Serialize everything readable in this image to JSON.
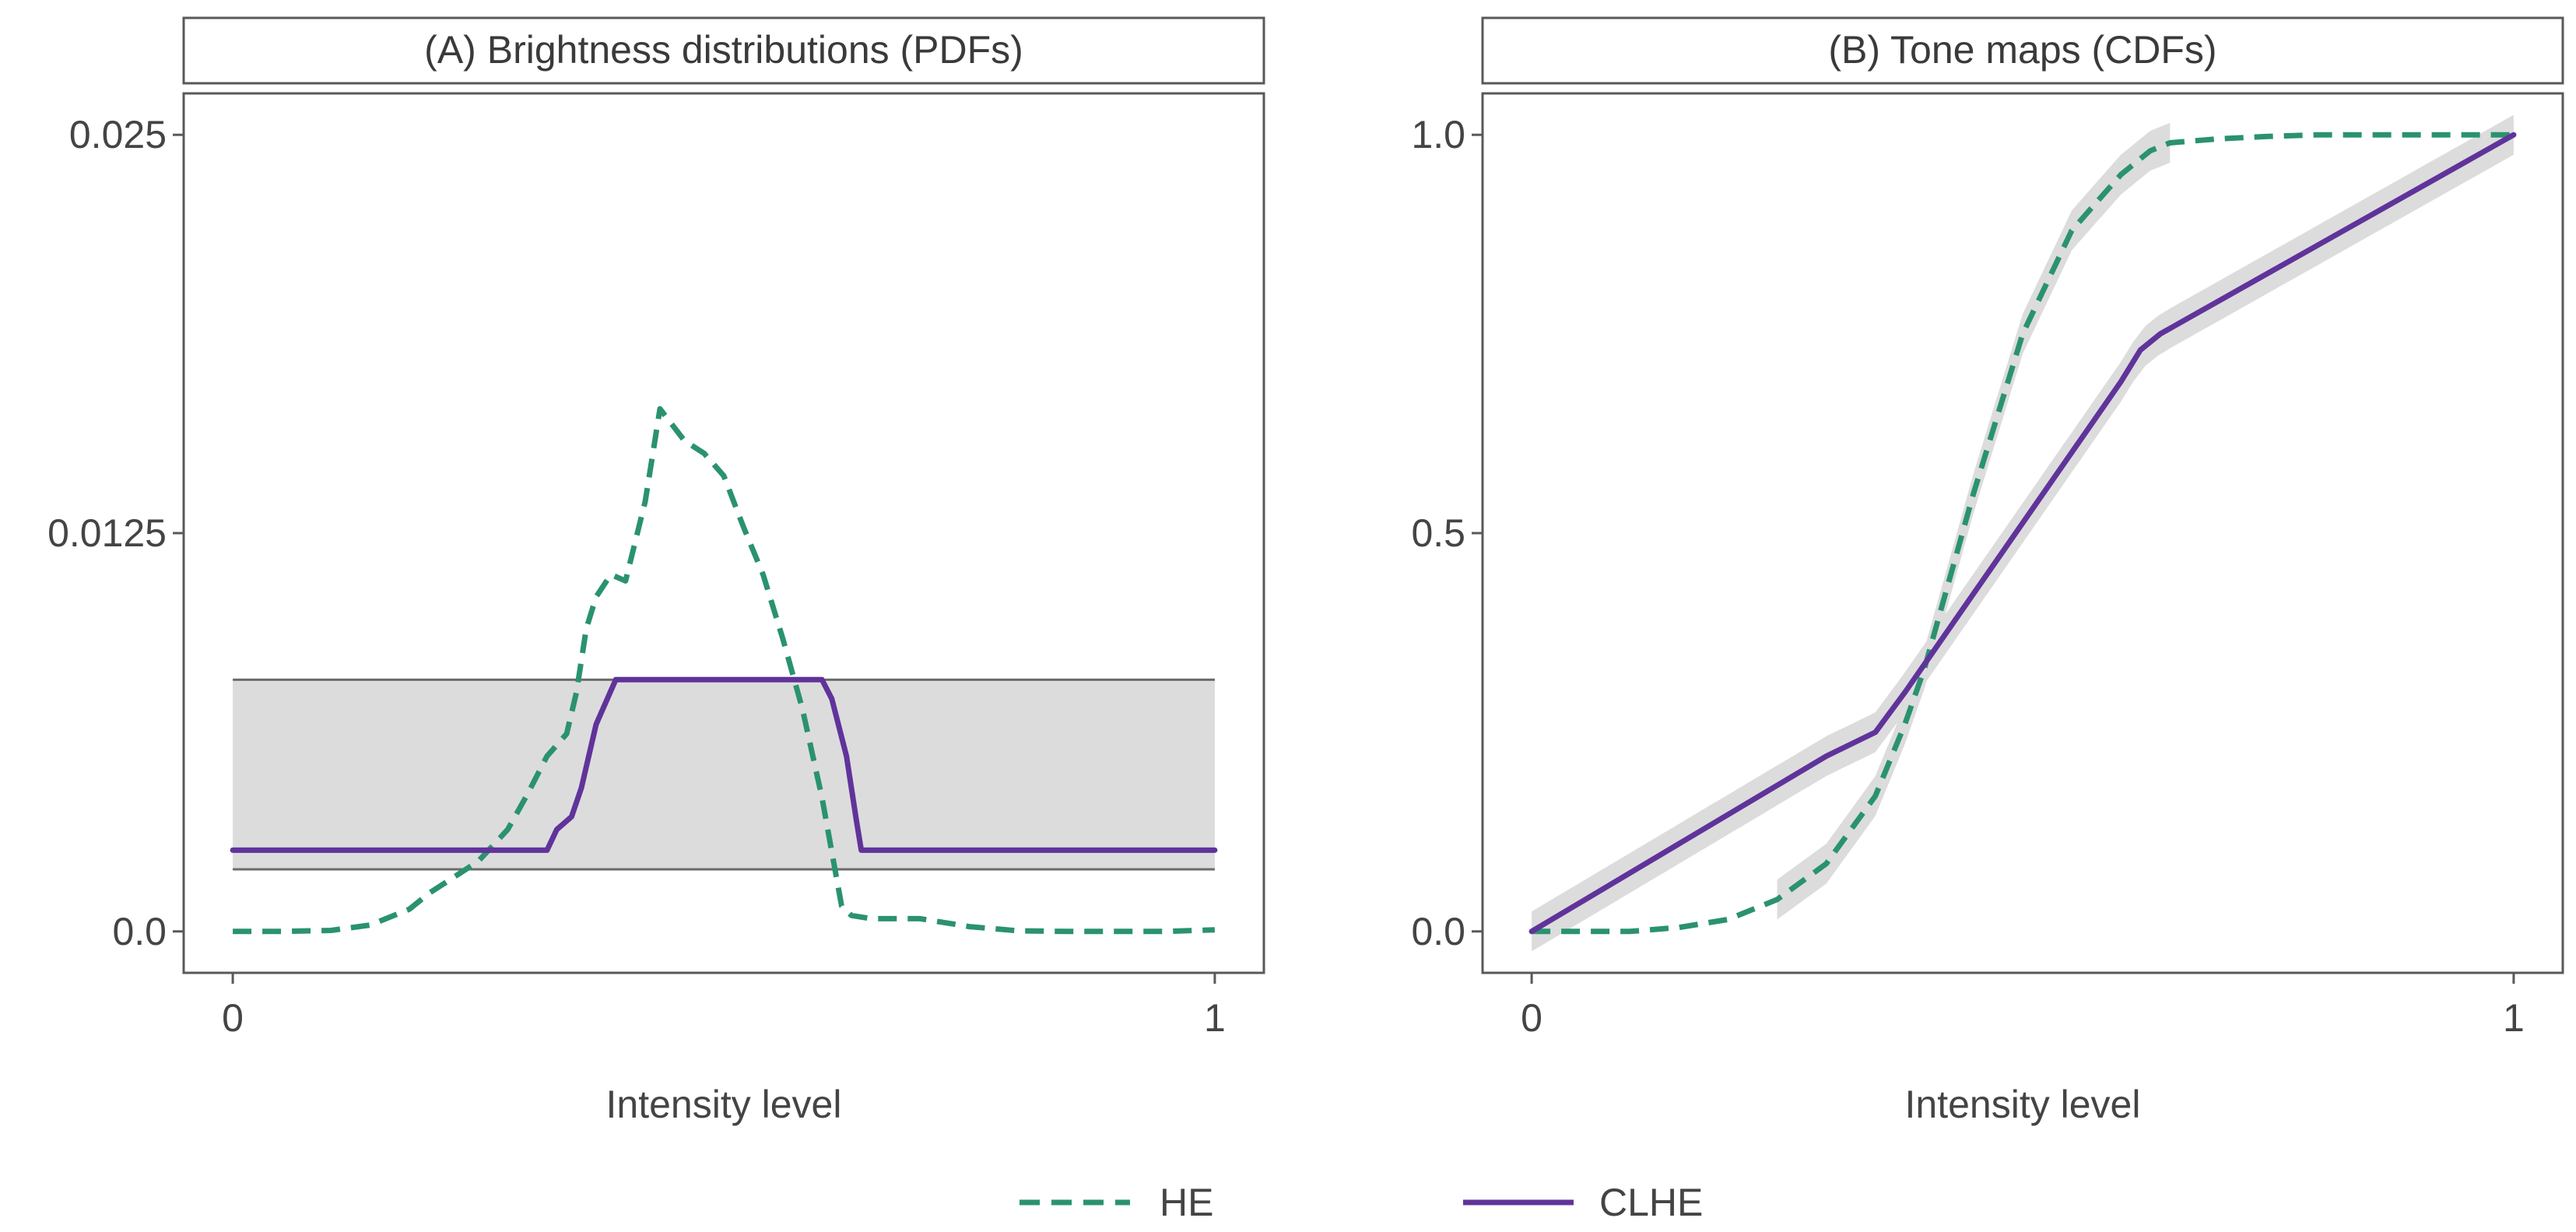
{
  "chart_data": [
    {
      "type": "line",
      "title": "(A) Brightness distributions (PDFs)",
      "xlabel": "Intensity level",
      "ylabel": "",
      "xlim": [
        -0.05,
        1.05
      ],
      "ylim": [
        -0.0013,
        0.0263
      ],
      "x_ticks": [
        0,
        1
      ],
      "x_tick_labels": [
        "0",
        "1"
      ],
      "y_ticks": [
        0,
        0.0125,
        0.025
      ],
      "y_tick_labels": [
        "0.0",
        "0.0125",
        "0.025"
      ],
      "clip_band": {
        "x": [
          0,
          1
        ],
        "y_low": 0.00195,
        "y_high": 0.0079
      },
      "series": [
        {
          "name": "HE",
          "style": "dashed",
          "x": [
            0,
            0.05,
            0.1,
            0.14,
            0.18,
            0.2,
            0.22,
            0.25,
            0.28,
            0.3,
            0.32,
            0.34,
            0.35,
            0.36,
            0.37,
            0.385,
            0.4,
            0.42,
            0.435,
            0.445,
            0.46,
            0.48,
            0.5,
            0.52,
            0.54,
            0.56,
            0.58,
            0.6,
            0.62,
            0.63,
            0.65,
            0.7,
            0.75,
            0.8,
            0.85,
            0.9,
            0.95,
            1.0
          ],
          "y": [
            0,
            0,
            3e-05,
            0.0002,
            0.0007,
            0.0012,
            0.0016,
            0.0022,
            0.0032,
            0.0043,
            0.0055,
            0.0062,
            0.0075,
            0.0095,
            0.0105,
            0.0112,
            0.011,
            0.0135,
            0.0164,
            0.016,
            0.0154,
            0.015,
            0.0143,
            0.0127,
            0.0112,
            0.0092,
            0.007,
            0.0042,
            0.0008,
            0.0005,
            0.0004,
            0.0004,
            0.00015,
            2e-05,
            0,
            0,
            0,
            5e-05
          ]
        },
        {
          "name": "CLHE",
          "style": "solid",
          "x": [
            0,
            0.32,
            0.33,
            0.345,
            0.355,
            0.37,
            0.39,
            0.6,
            0.61,
            0.625,
            0.635,
            0.64,
            1.0
          ],
          "y": [
            0.00255,
            0.00255,
            0.0032,
            0.0036,
            0.0045,
            0.0065,
            0.0079,
            0.0079,
            0.0073,
            0.0055,
            0.0035,
            0.00255,
            0.00255
          ]
        }
      ]
    },
    {
      "type": "line",
      "title": "(B) Tone maps (CDFs)",
      "xlabel": "Intensity level",
      "ylabel": "",
      "xlim": [
        -0.05,
        1.05
      ],
      "ylim": [
        -0.052,
        1.052
      ],
      "x_ticks": [
        0,
        1
      ],
      "x_tick_labels": [
        "0",
        "1"
      ],
      "y_ticks": [
        0,
        0.5,
        1
      ],
      "y_tick_labels": [
        "0.0",
        "0.5",
        "1.0"
      ],
      "series": [
        {
          "name": "HE",
          "style": "dashed",
          "x": [
            0,
            0.1,
            0.15,
            0.2,
            0.25,
            0.3,
            0.35,
            0.38,
            0.4,
            0.45,
            0.5,
            0.55,
            0.6,
            0.62,
            0.63,
            0.65,
            0.7,
            0.75,
            0.8,
            1.0
          ],
          "y": [
            0,
            0,
            0.005,
            0.015,
            0.04,
            0.085,
            0.17,
            0.26,
            0.33,
            0.55,
            0.75,
            0.88,
            0.95,
            0.97,
            0.98,
            0.99,
            0.995,
            0.998,
            1.0,
            1.0
          ],
          "band_x": [
            0.25,
            0.65
          ],
          "band_halfwidth": 0.025
        },
        {
          "name": "CLHE",
          "style": "solid",
          "x": [
            0,
            0.3,
            0.35,
            0.38,
            0.6,
            0.62,
            0.64,
            1.0
          ],
          "y": [
            0,
            0.22,
            0.25,
            0.3,
            0.69,
            0.73,
            0.75,
            1.0
          ],
          "band_halfwidth": 0.025
        }
      ]
    }
  ],
  "legend": {
    "items": [
      {
        "name": "HE",
        "style": "dashed",
        "color": "#2a9270"
      },
      {
        "name": "CLHE",
        "style": "solid",
        "color": "#60339a"
      }
    ]
  },
  "colors": {
    "he": "#2a9270",
    "clhe": "#60339a",
    "band_fill": "#dcdcdd",
    "panel_border": "#595959",
    "band_edge": "#6b6b6b"
  }
}
